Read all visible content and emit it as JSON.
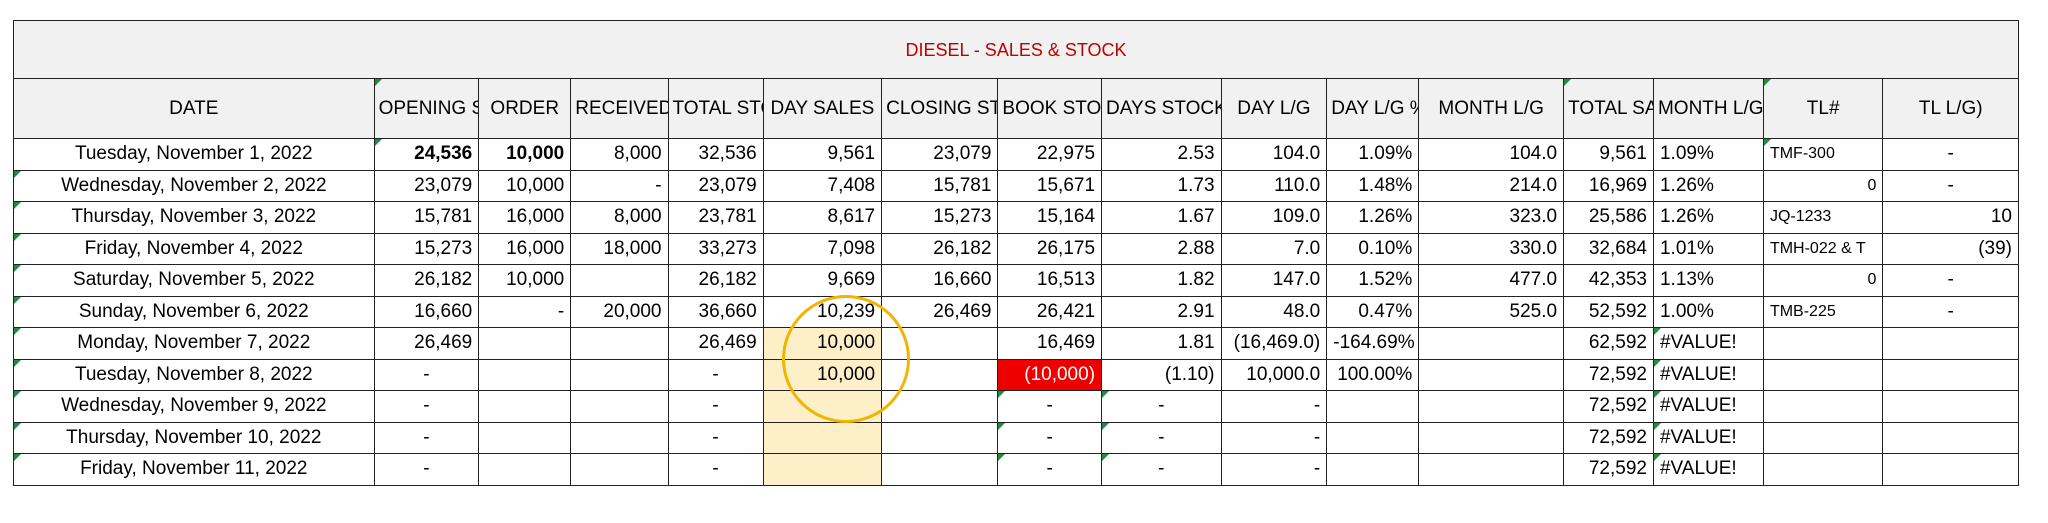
{
  "sheet": {
    "title": "DIESEL - SALES & STOCK",
    "headers": [
      "DATE",
      "OPENING STOCK",
      "ORDER",
      "RECEIVED",
      "TOTAL STOCK",
      "DAY SALES",
      "CLOSING STOCK",
      "BOOK STOCK",
      "DAYS STOCK",
      "DAY L/G",
      "DAY  L/G %",
      "MONTH L/G",
      "TOTAL SALES",
      "MONTH L/G %",
      "TL#",
      "TL L/G)"
    ],
    "rows": [
      [
        "Tuesday, November 1, 2022",
        "24,536",
        "10,000",
        "8,000",
        "32,536",
        "9,561",
        "23,079",
        "22,975",
        "2.53",
        "104.0",
        "1.09%",
        "104.0",
        "9,561",
        "1.09%",
        "TMF-300",
        "-"
      ],
      [
        "Wednesday, November 2, 2022",
        "23,079",
        "10,000",
        "-",
        "23,079",
        "7,408",
        "15,781",
        "15,671",
        "1.73",
        "110.0",
        "1.48%",
        "214.0",
        "16,969",
        "1.26%",
        "0",
        "-"
      ],
      [
        "Thursday, November 3, 2022",
        "15,781",
        "16,000",
        "8,000",
        "23,781",
        "8,617",
        "15,273",
        "15,164",
        "1.67",
        "109.0",
        "1.26%",
        "323.0",
        "25,586",
        "1.26%",
        "JQ-1233",
        "10"
      ],
      [
        "Friday, November 4, 2022",
        "15,273",
        "16,000",
        "18,000",
        "33,273",
        "7,098",
        "26,182",
        "26,175",
        "2.88",
        "7.0",
        "0.10%",
        "330.0",
        "32,684",
        "1.01%",
        "TMH-022 & T",
        "(39)"
      ],
      [
        "Saturday, November 5, 2022",
        "26,182",
        "10,000",
        "",
        "26,182",
        "9,669",
        "16,660",
        "16,513",
        "1.82",
        "147.0",
        "1.52%",
        "477.0",
        "42,353",
        "1.13%",
        "0",
        "-"
      ],
      [
        "Sunday, November 6, 2022",
        "16,660",
        "-",
        "20,000",
        "36,660",
        "10,239",
        "26,469",
        "26,421",
        "2.91",
        "48.0",
        "0.47%",
        "525.0",
        "52,592",
        "1.00%",
        "TMB-225",
        "-"
      ],
      [
        "Monday, November 7, 2022",
        "26,469",
        "",
        "",
        "26,469",
        "10,000",
        "",
        "16,469",
        "1.81",
        "(16,469.0)",
        "-164.69%",
        "",
        "62,592",
        "#VALUE!",
        "",
        ""
      ],
      [
        "Tuesday, November 8, 2022",
        "-",
        "",
        "",
        "-",
        "10,000",
        "",
        "(10,000)",
        "(1.10)",
        "10,000.0",
        "100.00%",
        "",
        "72,592",
        "#VALUE!",
        "",
        ""
      ],
      [
        "Wednesday, November 9, 2022",
        "-",
        "",
        "",
        "-",
        "",
        "",
        "-",
        "-",
        "-",
        "",
        "",
        "72,592",
        "#VALUE!",
        "",
        ""
      ],
      [
        "Thursday, November 10, 2022",
        "-",
        "",
        "",
        "-",
        "",
        "",
        "-",
        "-",
        "-",
        "",
        "",
        "72,592",
        "#VALUE!",
        "",
        ""
      ],
      [
        "Friday, November 11, 2022",
        "-",
        "",
        "",
        "-",
        "",
        "",
        "-",
        "-",
        "-",
        "",
        "",
        "72,592",
        "#VALUE!",
        "",
        ""
      ]
    ],
    "colors": {
      "title_text": "#c00000",
      "header_bg": "#f1f1f1",
      "highlight_fill": "#fdf0c8",
      "negative_fill": "#ee0000",
      "circle": "#f1b500",
      "error_flag": "#1e8e3e"
    }
  }
}
